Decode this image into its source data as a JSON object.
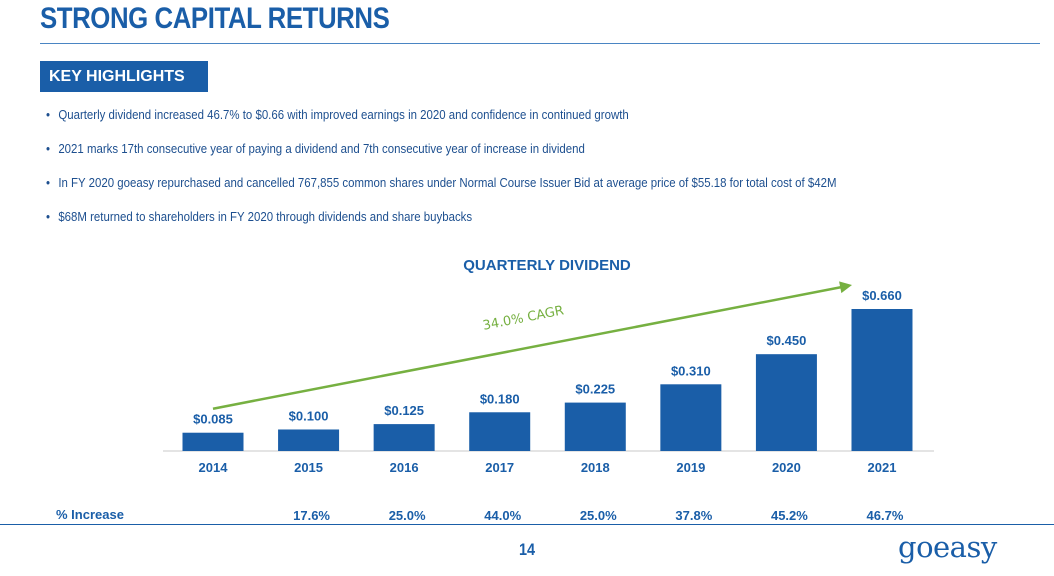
{
  "page": {
    "title": "STRONG CAPITAL RETURNS",
    "section_badge": "KEY HIGHLIGHTS",
    "page_number": "14",
    "logo_text": "goeasy"
  },
  "highlights": [
    "Quarterly dividend increased 46.7% to $0.66 with improved earnings in 2020 and confidence in continued growth",
    "2021 marks 17th consecutive year of paying a dividend and 7th consecutive year of increase in dividend",
    "In FY 2020 goeasy repurchased and cancelled 767,855 common shares under Normal Course Issuer Bid at average price of $55.18 for total cost of $42M",
    "$68M returned to shareholders in FY 2020 through dividends and share buybacks"
  ],
  "bullet_glyph": "•",
  "increase_row_label": "% Increase",
  "colors": {
    "brand_blue": "#1a5ea8",
    "bar_blue": "#1a5ea8",
    "cagr_green": "#76b041"
  },
  "chart_data": {
    "type": "bar",
    "title": "QUARTERLY DIVIDEND",
    "categories": [
      "2014",
      "2015",
      "2016",
      "2017",
      "2018",
      "2019",
      "2020",
      "2021"
    ],
    "values": [
      0.085,
      0.1,
      0.125,
      0.18,
      0.225,
      0.31,
      0.45,
      0.66
    ],
    "value_labels": [
      "$0.085",
      "$0.100",
      "$0.125",
      "$0.180",
      "$0.225",
      "$0.310",
      "$0.450",
      "$0.660"
    ],
    "percent_increase": [
      "",
      "17.6%",
      "25.0%",
      "44.0%",
      "25.0%",
      "37.8%",
      "45.2%",
      "46.7%"
    ],
    "trend_annotation": "34.0% CAGR",
    "xlabel": "",
    "ylabel": "",
    "grid": false,
    "legend": "none"
  }
}
